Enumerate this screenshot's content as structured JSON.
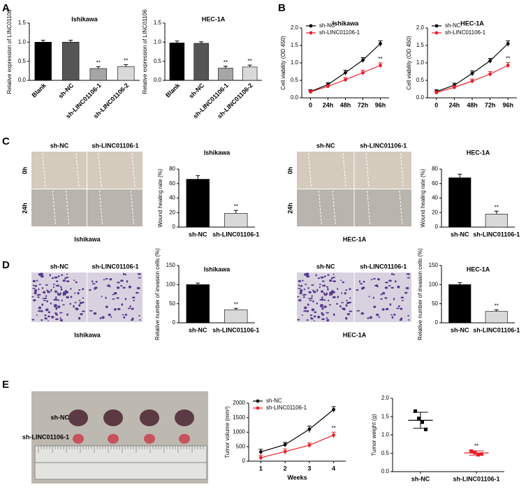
{
  "panel_labels": [
    "A",
    "B",
    "C",
    "D",
    "E"
  ],
  "chart_data": [
    {
      "type": "bar",
      "title": "Ishikawa",
      "ylabel": "Relative expression of LINC01106",
      "categories": [
        "Blank",
        "sh-NC",
        "sh-LINC01106-1",
        "sh-LINC01106-2"
      ],
      "values": [
        1.0,
        1.0,
        0.31,
        0.36
      ],
      "errors": [
        0.05,
        0.05,
        0.05,
        0.05
      ],
      "annotations": [
        null,
        null,
        "**",
        "**"
      ],
      "colors": [
        "#000000",
        "#555555",
        "#a6a6a6",
        "#d9d9d9"
      ],
      "ylim": [
        0,
        1.5
      ],
      "yticks": [
        {
          "value": 0,
          "label": "0.0"
        },
        {
          "value": 0.5,
          "label": "0.5"
        },
        {
          "value": 1,
          "label": "1.0"
        },
        {
          "value": 1.5,
          "label": "1.5"
        }
      ]
    },
    {
      "type": "bar",
      "title": "HEC-1A",
      "ylabel": "Relative expression of LINC01106",
      "categories": [
        "Blank",
        "sh-NC",
        "sh-LINC01106-1",
        "sh-LINC01106-2"
      ],
      "values": [
        0.98,
        0.97,
        0.32,
        0.35
      ],
      "errors": [
        0.05,
        0.04,
        0.05,
        0.05
      ],
      "annotations": [
        null,
        null,
        "**",
        "**"
      ],
      "colors": [
        "#000000",
        "#555555",
        "#a6a6a6",
        "#d9d9d9"
      ],
      "ylim": [
        0,
        1.5
      ],
      "yticks": [
        {
          "value": 0,
          "label": "0.0"
        },
        {
          "value": 0.5,
          "label": "0.5"
        },
        {
          "value": 1,
          "label": "1.0"
        },
        {
          "value": 1.5,
          "label": "1.5"
        }
      ]
    },
    {
      "type": "line",
      "title": "Ishikawa",
      "ylabel": "Cell viability (OD 450)",
      "legend": "upper left",
      "categories": [
        "0",
        "24h",
        "48h",
        "72h",
        "96h"
      ],
      "series": [
        {
          "name": "sh-NC",
          "color": "#000000",
          "values": [
            0.18,
            0.38,
            0.72,
            1.08,
            1.55
          ],
          "errors": [
            0.05,
            0.05,
            0.07,
            0.07,
            0.08
          ],
          "annotations": [
            null,
            null,
            null,
            null,
            null
          ]
        },
        {
          "name": "sh-LINC01106-1",
          "color": "#e8202a",
          "values": [
            0.17,
            0.33,
            0.52,
            0.72,
            0.93
          ],
          "errors": [
            0.04,
            0.05,
            0.06,
            0.07,
            0.07
          ],
          "annotations": [
            null,
            null,
            null,
            null,
            "**"
          ]
        }
      ],
      "ylim": [
        0,
        2
      ],
      "yticks": [
        {
          "value": 0,
          "label": "0.0"
        },
        {
          "value": 0.5,
          "label": "0.5"
        },
        {
          "value": 1,
          "label": "1.0"
        },
        {
          "value": 1.5,
          "label": "1.5"
        },
        {
          "value": 2,
          "label": "2.0"
        }
      ]
    },
    {
      "type": "line",
      "title": "HEC-1A",
      "ylabel": "Cell viability (OD 450)",
      "legend": "upper left",
      "categories": [
        "0",
        "24h",
        "48h",
        "72h",
        "96h"
      ],
      "series": [
        {
          "name": "sh-NC",
          "color": "#000000",
          "values": [
            0.18,
            0.36,
            0.7,
            1.06,
            1.55
          ],
          "errors": [
            0.05,
            0.06,
            0.07,
            0.07,
            0.08
          ],
          "annotations": [
            null,
            null,
            null,
            null,
            null
          ]
        },
        {
          "name": "sh-LINC01106-1",
          "color": "#e8202a",
          "values": [
            0.15,
            0.3,
            0.48,
            0.68,
            0.93
          ],
          "errors": [
            0.04,
            0.05,
            0.06,
            0.07,
            0.08
          ],
          "annotations": [
            null,
            null,
            null,
            null,
            "**"
          ]
        }
      ],
      "ylim": [
        0,
        2
      ],
      "yticks": [
        {
          "value": 0,
          "label": "0.0"
        },
        {
          "value": 0.5,
          "label": "0.5"
        },
        {
          "value": 1,
          "label": "1.0"
        },
        {
          "value": 1.5,
          "label": "1.5"
        },
        {
          "value": 2,
          "label": "2.0"
        }
      ]
    },
    {
      "type": "micrograph",
      "columns": [
        "sh-NC",
        "sh-LINC01106-1"
      ],
      "rows": [
        "0h",
        "24h"
      ],
      "caption": "Ishikawa"
    },
    {
      "type": "bar",
      "title": "Ishikawa",
      "ylabel": "Wound healing rate (%)",
      "categories": [
        "sh-NC",
        "sh-LINC01106-1"
      ],
      "values": [
        66,
        19
      ],
      "errors": [
        5,
        4
      ],
      "annotations": [
        null,
        "**"
      ],
      "colors": [
        "#000000",
        "#d9d9d9"
      ],
      "ylim": [
        0,
        80
      ],
      "yticks": [
        0,
        20,
        40,
        60,
        80
      ]
    },
    {
      "type": "micrograph",
      "columns": [
        "sh-NC",
        "sh-LINC01106-1"
      ],
      "rows": [
        "0h",
        "24h"
      ],
      "caption": "HEC-1A"
    },
    {
      "type": "bar",
      "title": "HEC-1A",
      "ylabel": "Wound healing rate (%)",
      "categories": [
        "sh-NC",
        "sh-LINC01106-1"
      ],
      "values": [
        68,
        18
      ],
      "errors": [
        5,
        4
      ],
      "annotations": [
        null,
        "**"
      ],
      "colors": [
        "#000000",
        "#d9d9d9"
      ],
      "ylim": [
        0,
        80
      ],
      "yticks": [
        0,
        20,
        40,
        60,
        80
      ]
    },
    {
      "type": "micrograph",
      "columns": [
        "sh-NC",
        "sh-LINC01106-1"
      ],
      "caption": "Ishikawa"
    },
    {
      "type": "bar",
      "title": "Ishikawa",
      "ylabel": "Relative number of invasion cells (%)",
      "categories": [
        "sh-NC",
        "sh-LINC01106-1"
      ],
      "values": [
        100,
        34
      ],
      "errors": [
        4,
        4
      ],
      "annotations": [
        null,
        "**"
      ],
      "colors": [
        "#000000",
        "#d9d9d9"
      ],
      "ylim": [
        0,
        150
      ],
      "yticks": [
        0,
        50,
        100,
        150
      ]
    },
    {
      "type": "micrograph",
      "columns": [
        "sh-NC",
        "sh-LINC01106-1"
      ],
      "caption": "HEC-1A"
    },
    {
      "type": "bar",
      "title": "HEC-1A",
      "ylabel": "Relative number of invasion cells (%)",
      "categories": [
        "sh-NC",
        "sh-LINC01106-1"
      ],
      "values": [
        100,
        30
      ],
      "errors": [
        5,
        4
      ],
      "annotations": [
        null,
        "**"
      ],
      "colors": [
        "#000000",
        "#d9d9d9"
      ],
      "ylim": [
        0,
        150
      ],
      "yticks": [
        0,
        50,
        100,
        150
      ]
    },
    {
      "type": "photo",
      "rows": [
        "sh-NC",
        "sh-LINC01106-1"
      ]
    },
    {
      "type": "line",
      "ylabel": "Tumor volume (mm³)",
      "xlabel": "Weeks",
      "legend": "upper left",
      "categories": [
        "1",
        "2",
        "3",
        "4"
      ],
      "series": [
        {
          "name": "sh-NC",
          "color": "#000000",
          "values": [
            320,
            570,
            1100,
            1780
          ],
          "errors": [
            90,
            80,
            110,
            100
          ],
          "annotations": [
            null,
            null,
            null,
            null
          ]
        },
        {
          "name": "sh-LINC01106-1",
          "color": "#e8202a",
          "values": [
            120,
            330,
            550,
            900
          ],
          "errors": [
            80,
            90,
            80,
            100
          ],
          "annotations": [
            null,
            null,
            null,
            "**"
          ]
        }
      ],
      "ylim": [
        0,
        2000
      ],
      "yticks": [
        0,
        500,
        1000,
        1500,
        2000
      ]
    },
    {
      "type": "scatter",
      "ylabel": "Tumor weight (g)",
      "groups": [
        {
          "name": "sh-NC",
          "color": "#000000",
          "values": [
            1.65,
            1.45,
            1.35,
            1.15
          ],
          "mean": 1.4,
          "sd": 0.22,
          "annotation": null
        },
        {
          "name": "sh-LINC01106-1",
          "color": "#e8202a",
          "values": [
            0.56,
            0.52,
            0.46,
            0.48
          ],
          "mean": 0.51,
          "sd": 0.06,
          "annotation": "**"
        }
      ],
      "ylim": [
        0,
        2
      ],
      "yticks": [
        {
          "value": 0,
          "label": "0.0"
        },
        {
          "value": 0.5,
          "label": "0.5"
        },
        {
          "value": 1,
          "label": "1.0"
        },
        {
          "value": 1.5,
          "label": "1.5"
        },
        {
          "value": 2,
          "label": "2.0"
        }
      ]
    }
  ]
}
